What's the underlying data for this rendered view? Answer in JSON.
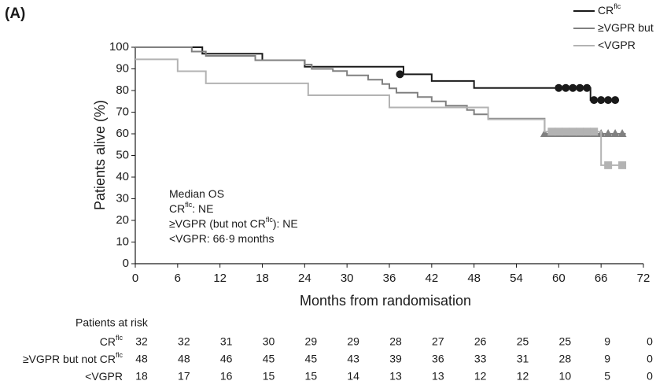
{
  "chart_data": {
    "type": "step",
    "panel_label": "(A)",
    "xlabel": "Months from randomisation",
    "ylabel": "Patients alive (%)",
    "xlim": [
      0,
      72
    ],
    "xticks": [
      0,
      6,
      12,
      18,
      24,
      30,
      36,
      42,
      48,
      54,
      60,
      66,
      72
    ],
    "ylim": [
      0,
      100
    ],
    "yticks": [
      0,
      10,
      20,
      30,
      40,
      50,
      60,
      70,
      80,
      90,
      100
    ],
    "series": [
      {
        "name": "CR",
        "name_sup": "flc",
        "color": "#1a1a1a",
        "marker": "circle",
        "x": [
          0,
          9.5,
          18,
          24,
          38,
          42,
          48,
          64.5,
          68.5
        ],
        "values": [
          100,
          97,
          94,
          91,
          87.5,
          84.4,
          81.2,
          75.6,
          75.6
        ],
        "censor_x": [
          37.5,
          60,
          61,
          62,
          63,
          64,
          65,
          66,
          67,
          68
        ],
        "censor_values": [
          87.5,
          81.2,
          81.2,
          81.2,
          81.2,
          81.2,
          75.6,
          75.6,
          75.6,
          75.6
        ]
      },
      {
        "name": "≥VGPR but not CR",
        "name_sup": "flc",
        "color": "#808080",
        "marker": "triangle",
        "x": [
          0,
          8,
          10,
          17,
          24,
          25,
          28,
          30,
          33,
          35,
          36,
          37,
          40,
          42,
          44,
          47,
          48,
          50,
          58,
          69.5
        ],
        "values": [
          100,
          98,
          96,
          94,
          92,
          90,
          89,
          87,
          85,
          83,
          81,
          79,
          77,
          75,
          73,
          71,
          69,
          67,
          60,
          60
        ],
        "censor_x": [
          58,
          59,
          60,
          61,
          62,
          63,
          64,
          65,
          66,
          67,
          68,
          69
        ],
        "censor_values": [
          60,
          60,
          60,
          60,
          60,
          60,
          60,
          60,
          60,
          60,
          60,
          60
        ]
      },
      {
        "name": "<VGPR",
        "color": "#b3b3b3",
        "marker": "square",
        "x": [
          0,
          6,
          10,
          24.5,
          36,
          50,
          58,
          66,
          69
        ],
        "values": [
          94.4,
          88.9,
          83.3,
          77.8,
          72.2,
          66.7,
          61,
          45.5,
          45.5
        ],
        "censor_x": [
          59,
          60,
          61,
          62,
          63,
          64,
          65,
          67,
          69
        ],
        "censor_values": [
          61,
          61,
          61,
          61,
          61,
          61,
          61,
          45.5,
          45.5
        ]
      }
    ],
    "annotation": [
      [
        "Median OS"
      ],
      [
        "CR",
        "flc",
        ": NE"
      ],
      [
        "≥VGPR (but not CR",
        "flc",
        "): NE"
      ],
      [
        "<VGPR: 66·9 months"
      ]
    ],
    "at_risk": {
      "title": "Patients at risk",
      "counts": [
        [
          32,
          32,
          31,
          30,
          29,
          29,
          28,
          27,
          26,
          25,
          25,
          9,
          0
        ],
        [
          48,
          48,
          46,
          45,
          45,
          43,
          39,
          36,
          33,
          31,
          28,
          9,
          0
        ],
        [
          18,
          17,
          16,
          15,
          15,
          14,
          13,
          13,
          12,
          12,
          10,
          5,
          0
        ]
      ]
    }
  }
}
